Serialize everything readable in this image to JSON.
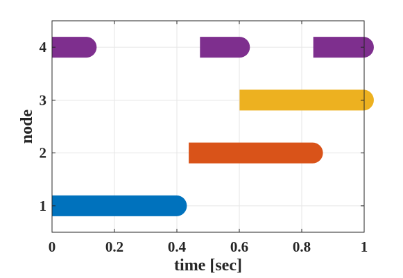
{
  "chart_data": {
    "type": "bar",
    "orientation": "horizontal-segments",
    "title": "",
    "xlabel": "time [sec]",
    "ylabel": "node",
    "xlim": [
      0,
      1
    ],
    "ylim": [
      0.5,
      4.5
    ],
    "x_ticks": [
      0,
      0.2,
      0.4,
      0.6,
      0.8,
      1
    ],
    "x_tick_labels": [
      "0",
      "0.2",
      "0.4",
      "0.6",
      "0.8",
      "1"
    ],
    "y_ticks": [
      1,
      2,
      3,
      4
    ],
    "y_tick_labels": [
      "1",
      "2",
      "3",
      "4"
    ],
    "grid": true,
    "segments": [
      {
        "node": 1,
        "start": 0.0,
        "end": 0.432,
        "color": "#0072BD"
      },
      {
        "node": 2,
        "start": 0.438,
        "end": 0.868,
        "color": "#D95319"
      },
      {
        "node": 3,
        "start": 0.601,
        "end": 1.031,
        "color": "#EDB120"
      },
      {
        "node": 4,
        "start": 0.0,
        "end": 0.143,
        "color": "#7E2F8E"
      },
      {
        "node": 4,
        "start": 0.474,
        "end": 0.634,
        "color": "#7E2F8E"
      },
      {
        "node": 4,
        "start": 0.837,
        "end": 1.031,
        "color": "#7E2F8E"
      }
    ]
  }
}
